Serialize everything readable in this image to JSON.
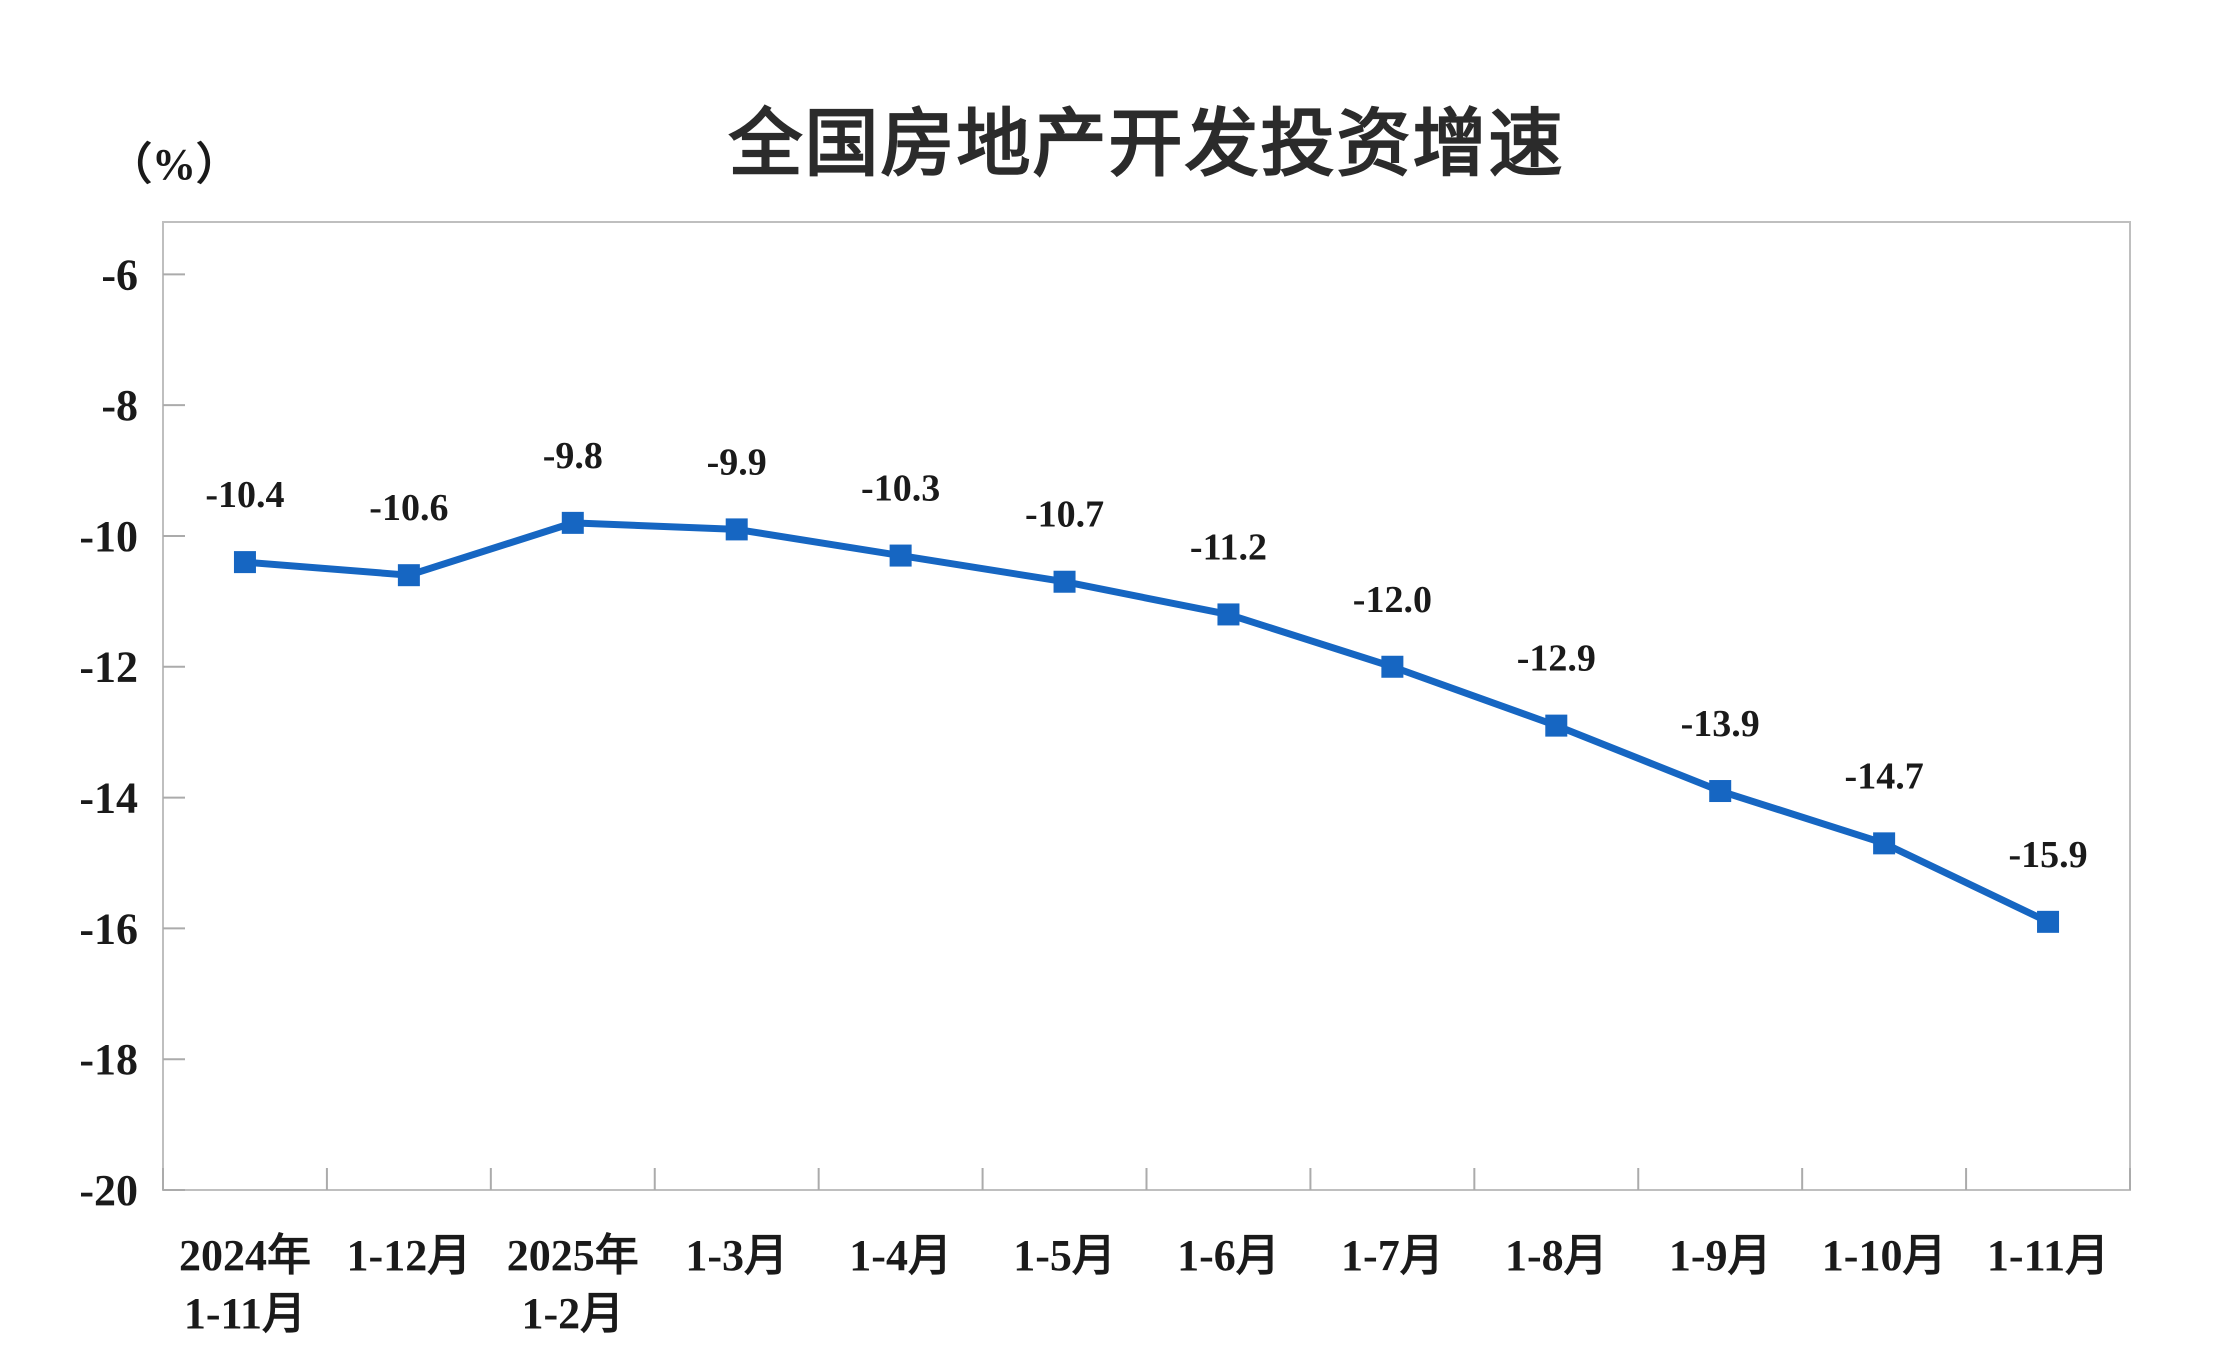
{
  "chart_data": {
    "type": "line",
    "title": "全国房地产开发投资增速",
    "unit_label": "（%）",
    "categories": [
      [
        "2024年",
        "1-11月"
      ],
      [
        "1-12月"
      ],
      [
        "2025年",
        "1-2月"
      ],
      [
        "1-3月"
      ],
      [
        "1-4月"
      ],
      [
        "1-5月"
      ],
      [
        "1-6月"
      ],
      [
        "1-7月"
      ],
      [
        "1-8月"
      ],
      [
        "1-9月"
      ],
      [
        "1-10月"
      ],
      [
        "1-11月"
      ]
    ],
    "series": [
      {
        "name": "全国房地产开发投资增速",
        "values": [
          -10.4,
          -10.6,
          -9.8,
          -9.9,
          -10.3,
          -10.7,
          -11.2,
          -12.0,
          -12.9,
          -13.9,
          -14.7,
          -15.9
        ]
      }
    ],
    "data_labels": [
      "-10.4",
      "-10.6",
      "-9.8",
      "-9.9",
      "-10.3",
      "-10.7",
      "-11.2",
      "-12.0",
      "-12.9",
      "-13.9",
      "-14.7",
      "-15.9"
    ],
    "y_ticks": [
      -6,
      -8,
      -10,
      -12,
      -14,
      -16,
      -18,
      -20
    ],
    "y_tick_labels": [
      "-6",
      "-8",
      "-10",
      "-12",
      "-14",
      "-16",
      "-18",
      "-20"
    ],
    "ylim": [
      -20,
      -5.2
    ],
    "grid": false,
    "legend": "none",
    "marker": "square",
    "colors": {
      "line": "#1666C2",
      "marker": "#1666C2",
      "axis": "#BFBFBF",
      "tick": "#ABABAB",
      "text": "#1a1a1a",
      "title": "#2b2b2b"
    }
  }
}
